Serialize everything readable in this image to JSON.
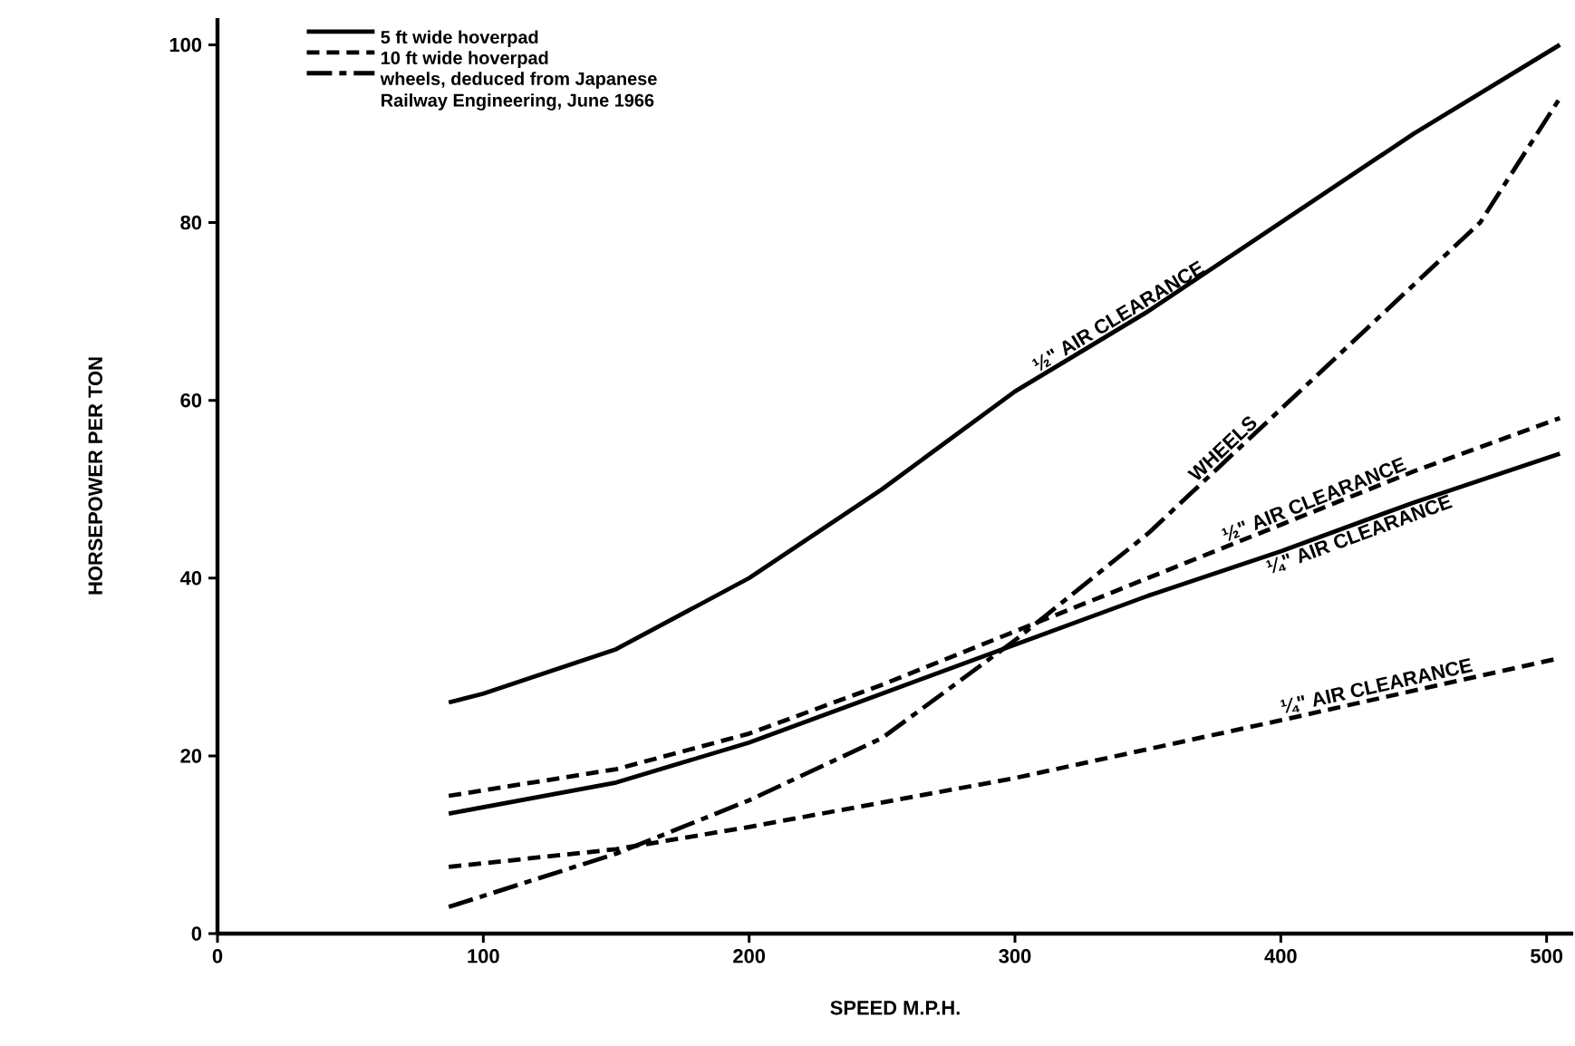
{
  "chart_data": {
    "type": "line",
    "xlabel": "SPEED M.P.H.",
    "ylabel": "HORSEPOWER PER TON",
    "xlim": [
      0,
      510
    ],
    "ylim": [
      0,
      103
    ],
    "xticks": [
      0,
      100,
      200,
      300,
      400,
      500
    ],
    "yticks": [
      0,
      20,
      40,
      60,
      80,
      100
    ],
    "grid": false,
    "legend": "top left",
    "marker": "none",
    "series": [
      {
        "name": "5 ft wide hoverpad",
        "color": "#000000",
        "line_style": "solid",
        "x": [
          87,
          100,
          150,
          200,
          250,
          300,
          350,
          400,
          450,
          505
        ],
        "values": [
          26,
          27,
          32,
          40,
          50,
          61,
          70,
          80,
          90,
          100
        ]
      },
      {
        "name": "10 ft wide hoverpad",
        "color": "#000000",
        "line_style": "dashed",
        "x": [
          87,
          150,
          200,
          250,
          300,
          350,
          400,
          450,
          505
        ],
        "values": [
          15.5,
          18.5,
          22.5,
          28,
          34,
          40,
          46,
          52,
          58
        ]
      },
      {
        "name": "wheels, deduced from Japanese Railway Engineering, June 1966",
        "color": "#000000",
        "line_style": "dashdot",
        "x": [
          87,
          150,
          200,
          250,
          300,
          350,
          400,
          450,
          475,
          505
        ],
        "values": [
          3,
          9,
          15,
          22,
          33,
          45,
          59,
          73,
          80,
          94
        ]
      },
      {
        "color": "#000000",
        "line_style": "solid",
        "x": [
          87,
          150,
          200,
          250,
          300,
          350,
          400,
          450,
          505
        ],
        "values": [
          13.5,
          17,
          21.5,
          27,
          32.5,
          38,
          43,
          48.5,
          54
        ]
      },
      {
        "color": "#000000",
        "line_style": "dashed",
        "x": [
          87,
          150,
          200,
          300,
          400,
          505
        ],
        "values": [
          7.5,
          9.5,
          12,
          17.5,
          24,
          31
        ]
      }
    ],
    "annotations": [
      {
        "text": "½\" AIR CLEARANCE",
        "x": 341,
        "y": 68.4
      },
      {
        "text": "WHEELS",
        "x": 381,
        "y": 53.7
      },
      {
        "text": "½\" AIR CLEARANCE",
        "x": 414,
        "y": 47.7
      },
      {
        "text": "¼\" AIR CLEARANCE",
        "x": 428,
        "y": 46.1
      },
      {
        "text": "¼\" AIR CLEARANCE",
        "x": 437,
        "y": 26.5
      }
    ]
  }
}
